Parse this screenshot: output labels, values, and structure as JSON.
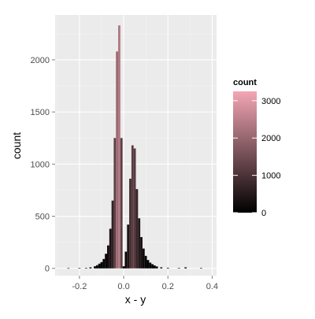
{
  "chart_data": {
    "type": "bar",
    "xlabel": "x - y",
    "ylabel": "count",
    "xlim": [
      -0.31,
      0.42
    ],
    "ylim": [
      -70,
      2430
    ],
    "x_ticks": [
      -0.2,
      0.0,
      0.2,
      0.4
    ],
    "x_tick_labels": [
      "-0.2",
      "0.0",
      "0.2",
      "0.4"
    ],
    "y_ticks": [
      0,
      500,
      1000,
      1500,
      2000
    ],
    "y_tick_labels": [
      "0",
      "500",
      "1000",
      "1500",
      "2000"
    ],
    "grid": true,
    "bin_width": 0.01,
    "x": [
      -0.25,
      -0.2,
      -0.17,
      -0.15,
      -0.13,
      -0.12,
      -0.11,
      -0.1,
      -0.09,
      -0.08,
      -0.07,
      -0.06,
      -0.05,
      -0.04,
      -0.03,
      -0.02,
      -0.01,
      0.0,
      0.01,
      0.02,
      0.03,
      0.04,
      0.05,
      0.06,
      0.07,
      0.08,
      0.09,
      0.1,
      0.11,
      0.12,
      0.13,
      0.14,
      0.15,
      0.17,
      0.2,
      0.25,
      0.28,
      0.35
    ],
    "values": [
      2,
      3,
      5,
      10,
      20,
      30,
      45,
      60,
      90,
      140,
      220,
      380,
      650,
      1250,
      2080,
      2330,
      1250,
      20,
      160,
      420,
      860,
      1180,
      1150,
      760,
      480,
      300,
      190,
      120,
      80,
      55,
      40,
      28,
      18,
      10,
      6,
      4,
      10,
      3
    ],
    "fill_legend": {
      "title": "count",
      "ticks": [
        0,
        1000,
        2000,
        3000
      ],
      "tick_labels": [
        "0",
        "1000",
        "2000",
        "3000"
      ],
      "range": [
        0,
        3250
      ],
      "low_color": "#000000",
      "high_color": "#f4a6b4"
    },
    "panel_background": "#ebebeb",
    "grid_color": "#ffffff"
  }
}
